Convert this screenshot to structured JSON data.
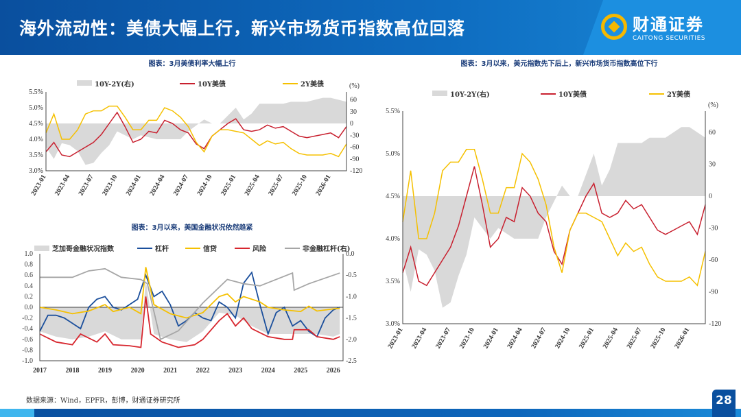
{
  "header": {
    "title": "海外流动性：美债大幅上行，新兴市场货币指数高位回落",
    "logo_cn": "财通证券",
    "logo_en": "CAITONG SECURITIES"
  },
  "source": "数据来源：Wind，EPFR，彭博，财通证券研究所",
  "page_number": "28",
  "colors": {
    "header": "#0a4f9e",
    "accent": "#f5b800",
    "spread": "#d9d9d9",
    "ten_year": "#c8202f",
    "two_year": "#f5c000",
    "leverage": "#1b4f9c",
    "credit": "#f5c000",
    "risk": "#d7262e",
    "nonfin": "#a6a6a6"
  },
  "chart_data": [
    {
      "type": "line",
      "title": "图表：3月美债利率大幅上行",
      "right_unit": "(%)",
      "ylim": [
        3.0,
        5.5
      ],
      "ylim_right": [
        -120,
        80
      ],
      "yticks": [
        "3.0%",
        "3.5%",
        "4.0%",
        "4.5%",
        "5.0%",
        "5.5%"
      ],
      "yticks_right": [
        "-120",
        "-90",
        "-60",
        "-30",
        "0",
        "30",
        "60"
      ],
      "xticks": [
        "2023-01",
        "2023-04",
        "2023-07",
        "2023-10",
        "2024-01",
        "2024-04",
        "2024-07",
        "2024-10",
        "2025-01",
        "2025-04",
        "2025-07",
        "2025-10",
        "2026-01"
      ],
      "legend": [
        "10Y-2Y(右)",
        "10Y美债",
        "2Y美债"
      ],
      "series": [
        {
          "name": "10Y-2Y(右)",
          "kind": "area",
          "axis": "right",
          "values": [
            -60,
            -90,
            -50,
            -55,
            -70,
            -105,
            -100,
            -75,
            -55,
            -20,
            -30,
            -40,
            -30,
            -35,
            -40,
            -40,
            -40,
            -40,
            -20,
            -5,
            10,
            0,
            0,
            20,
            40,
            10,
            25,
            50,
            50,
            50,
            50,
            55,
            55,
            55,
            60,
            65,
            65,
            60,
            55
          ]
        },
        {
          "name": "10Y美债",
          "kind": "line",
          "axis": "left",
          "values": [
            3.6,
            3.9,
            3.5,
            3.45,
            3.6,
            3.75,
            3.9,
            4.15,
            4.5,
            4.85,
            4.4,
            3.9,
            4.0,
            4.25,
            4.2,
            4.6,
            4.5,
            4.3,
            4.2,
            3.85,
            3.7,
            4.1,
            4.3,
            4.5,
            4.65,
            4.3,
            4.25,
            4.3,
            4.45,
            4.35,
            4.4,
            4.25,
            4.1,
            4.05,
            4.1,
            4.15,
            4.2,
            4.05,
            4.4
          ]
        },
        {
          "name": "2Y美债",
          "kind": "line",
          "axis": "left",
          "values": [
            4.2,
            4.8,
            4.0,
            4.0,
            4.3,
            4.8,
            4.9,
            4.9,
            5.05,
            5.05,
            4.7,
            4.3,
            4.3,
            4.6,
            4.6,
            5.0,
            4.9,
            4.7,
            4.4,
            3.9,
            3.6,
            4.1,
            4.3,
            4.3,
            4.25,
            4.2,
            4.0,
            3.8,
            3.95,
            3.85,
            3.9,
            3.7,
            3.55,
            3.5,
            3.5,
            3.5,
            3.55,
            3.45,
            3.85
          ]
        }
      ]
    },
    {
      "type": "line",
      "title": "图表：3月以来，美国金融状况依然趋紧",
      "ylim": [
        -1.0,
        1.0
      ],
      "ylim_right": [
        -2.5,
        0.0
      ],
      "yticks": [
        "-1.0",
        "-0.8",
        "-0.6",
        "-0.4",
        "-0.2",
        "0.0",
        "0.2",
        "0.4",
        "0.6",
        "0.8",
        "1.0"
      ],
      "yticks_right": [
        "-2.5",
        "-2.0",
        "-1.5",
        "-1.0",
        "-0.5",
        "0.0"
      ],
      "xticks": [
        "2017",
        "2018",
        "2019",
        "2020",
        "2021",
        "2022",
        "2023",
        "2024",
        "2025",
        "2026"
      ],
      "xlim": [
        2017,
        2026.3
      ],
      "legend": [
        "芝加哥金融状况指数",
        "杠杆",
        "信贷",
        "风险",
        "非金融杠杆(右)"
      ],
      "series": [
        {
          "name": "芝加哥金融状况指数",
          "kind": "area",
          "axis": "left",
          "x": [
            2017,
            2017.5,
            2018,
            2018.5,
            2019,
            2019.5,
            2020.1,
            2020.25,
            2020.5,
            2021,
            2021.5,
            2022,
            2022.5,
            2023,
            2023.5,
            2024,
            2024.5,
            2025,
            2025.5,
            2026,
            2026.2
          ],
          "y": [
            -0.45,
            -0.55,
            -0.6,
            -0.55,
            -0.45,
            -0.6,
            -0.6,
            0.5,
            -0.5,
            -0.6,
            -0.65,
            -0.45,
            -0.1,
            -0.15,
            -0.35,
            -0.5,
            -0.5,
            -0.5,
            -0.5,
            -0.55,
            -0.5
          ]
        },
        {
          "name": "杠杆",
          "kind": "line",
          "axis": "left",
          "x": [
            2017,
            2017.25,
            2017.5,
            2017.75,
            2018,
            2018.25,
            2018.5,
            2018.75,
            2019,
            2019.25,
            2019.5,
            2019.75,
            2020,
            2020.25,
            2020.5,
            2020.75,
            2021,
            2021.25,
            2021.5,
            2021.75,
            2022,
            2022.25,
            2022.5,
            2022.75,
            2023,
            2023.25,
            2023.5,
            2023.75,
            2024,
            2024.25,
            2024.5,
            2024.75,
            2025,
            2025.25,
            2025.5,
            2025.75,
            2026,
            2026.2
          ],
          "y": [
            -0.45,
            -0.15,
            -0.15,
            -0.2,
            -0.3,
            -0.4,
            0.0,
            0.15,
            0.2,
            0.0,
            -0.05,
            0.05,
            0.15,
            0.6,
            0.2,
            0.3,
            0.05,
            -0.35,
            -0.25,
            -0.1,
            -0.2,
            -0.25,
            0.1,
            0.0,
            -0.2,
            0.45,
            0.65,
            0.05,
            -0.5,
            -0.1,
            0.0,
            -0.35,
            -0.25,
            -0.45,
            -0.55,
            -0.2,
            -0.05,
            0.0
          ]
        },
        {
          "name": "信贷",
          "kind": "line",
          "axis": "left",
          "x": [
            2017,
            2017.5,
            2018,
            2018.5,
            2019,
            2019.25,
            2019.75,
            2020.1,
            2020.25,
            2020.5,
            2021,
            2021.5,
            2022,
            2022.5,
            2022.75,
            2023,
            2023.25,
            2023.75,
            2024,
            2024.5,
            2025,
            2025.25,
            2025.5,
            2026,
            2026.2
          ],
          "y": [
            0,
            -0.05,
            -0.12,
            -0.07,
            0.05,
            -0.08,
            0,
            -0.12,
            0.75,
            0.05,
            -0.12,
            -0.2,
            -0.1,
            0.2,
            0.25,
            0.1,
            0.2,
            0.1,
            0,
            -0.05,
            -0.08,
            0.02,
            -0.07,
            -0.03,
            -0.02
          ]
        },
        {
          "name": "风险",
          "kind": "line",
          "axis": "left",
          "x": [
            2017,
            2017.5,
            2018,
            2018.25,
            2018.75,
            2019,
            2019.25,
            2019.75,
            2020.1,
            2020.25,
            2020.4,
            2020.75,
            2021.25,
            2021.75,
            2022,
            2022.5,
            2022.75,
            2023,
            2023.25,
            2023.5,
            2024,
            2024.5,
            2024.75,
            2024.8,
            2025.25,
            2025.5,
            2026,
            2026.2
          ],
          "y": [
            -0.5,
            -0.65,
            -0.7,
            -0.5,
            -0.65,
            -0.5,
            -0.7,
            -0.72,
            -0.75,
            0.2,
            -0.5,
            -0.65,
            -0.75,
            -0.7,
            -0.6,
            -0.25,
            -0.12,
            -0.35,
            -0.2,
            -0.4,
            -0.55,
            -0.6,
            -0.6,
            -0.42,
            -0.42,
            -0.55,
            -0.6,
            -0.55
          ]
        },
        {
          "name": "非金融杠杆(右)",
          "kind": "line",
          "axis": "right",
          "x": [
            2017,
            2018,
            2018.5,
            2019,
            2019.5,
            2020.1,
            2020.3,
            2020.7,
            2021.25,
            2022,
            2022.75,
            2023.25,
            2023.75,
            2024.75,
            2024.8,
            2025.25,
            2026.2
          ],
          "y": [
            -0.55,
            -0.55,
            -0.4,
            -0.35,
            -0.55,
            -0.6,
            -0.7,
            -2.0,
            -1.8,
            -1.15,
            -0.6,
            -0.7,
            -0.75,
            -0.45,
            -0.85,
            -0.7,
            -0.45
          ]
        }
      ]
    },
    {
      "type": "line",
      "title": "图表：3月以来，美元指数先下后上，新兴市场货币指数高位下行",
      "right_unit": "(%)",
      "ylim": [
        3.0,
        5.5
      ],
      "ylim_right": [
        -120,
        80
      ],
      "yticks": [
        "3.0%",
        "3.5%",
        "4.0%",
        "4.5%",
        "5.0%",
        "5.5%"
      ],
      "yticks_right": [
        "-120",
        "-90",
        "-60",
        "-30",
        "0",
        "30",
        "60"
      ],
      "xticks": [
        "2023-01",
        "2023-04",
        "2023-07",
        "2023-10",
        "2024-01",
        "2024-04",
        "2024-07",
        "2024-10",
        "2025-01",
        "2025-04",
        "2025-07",
        "2025-10",
        "2026-01"
      ],
      "legend": [
        "10Y-2Y(右)",
        "10Y美债",
        "2Y美债"
      ]
    }
  ]
}
